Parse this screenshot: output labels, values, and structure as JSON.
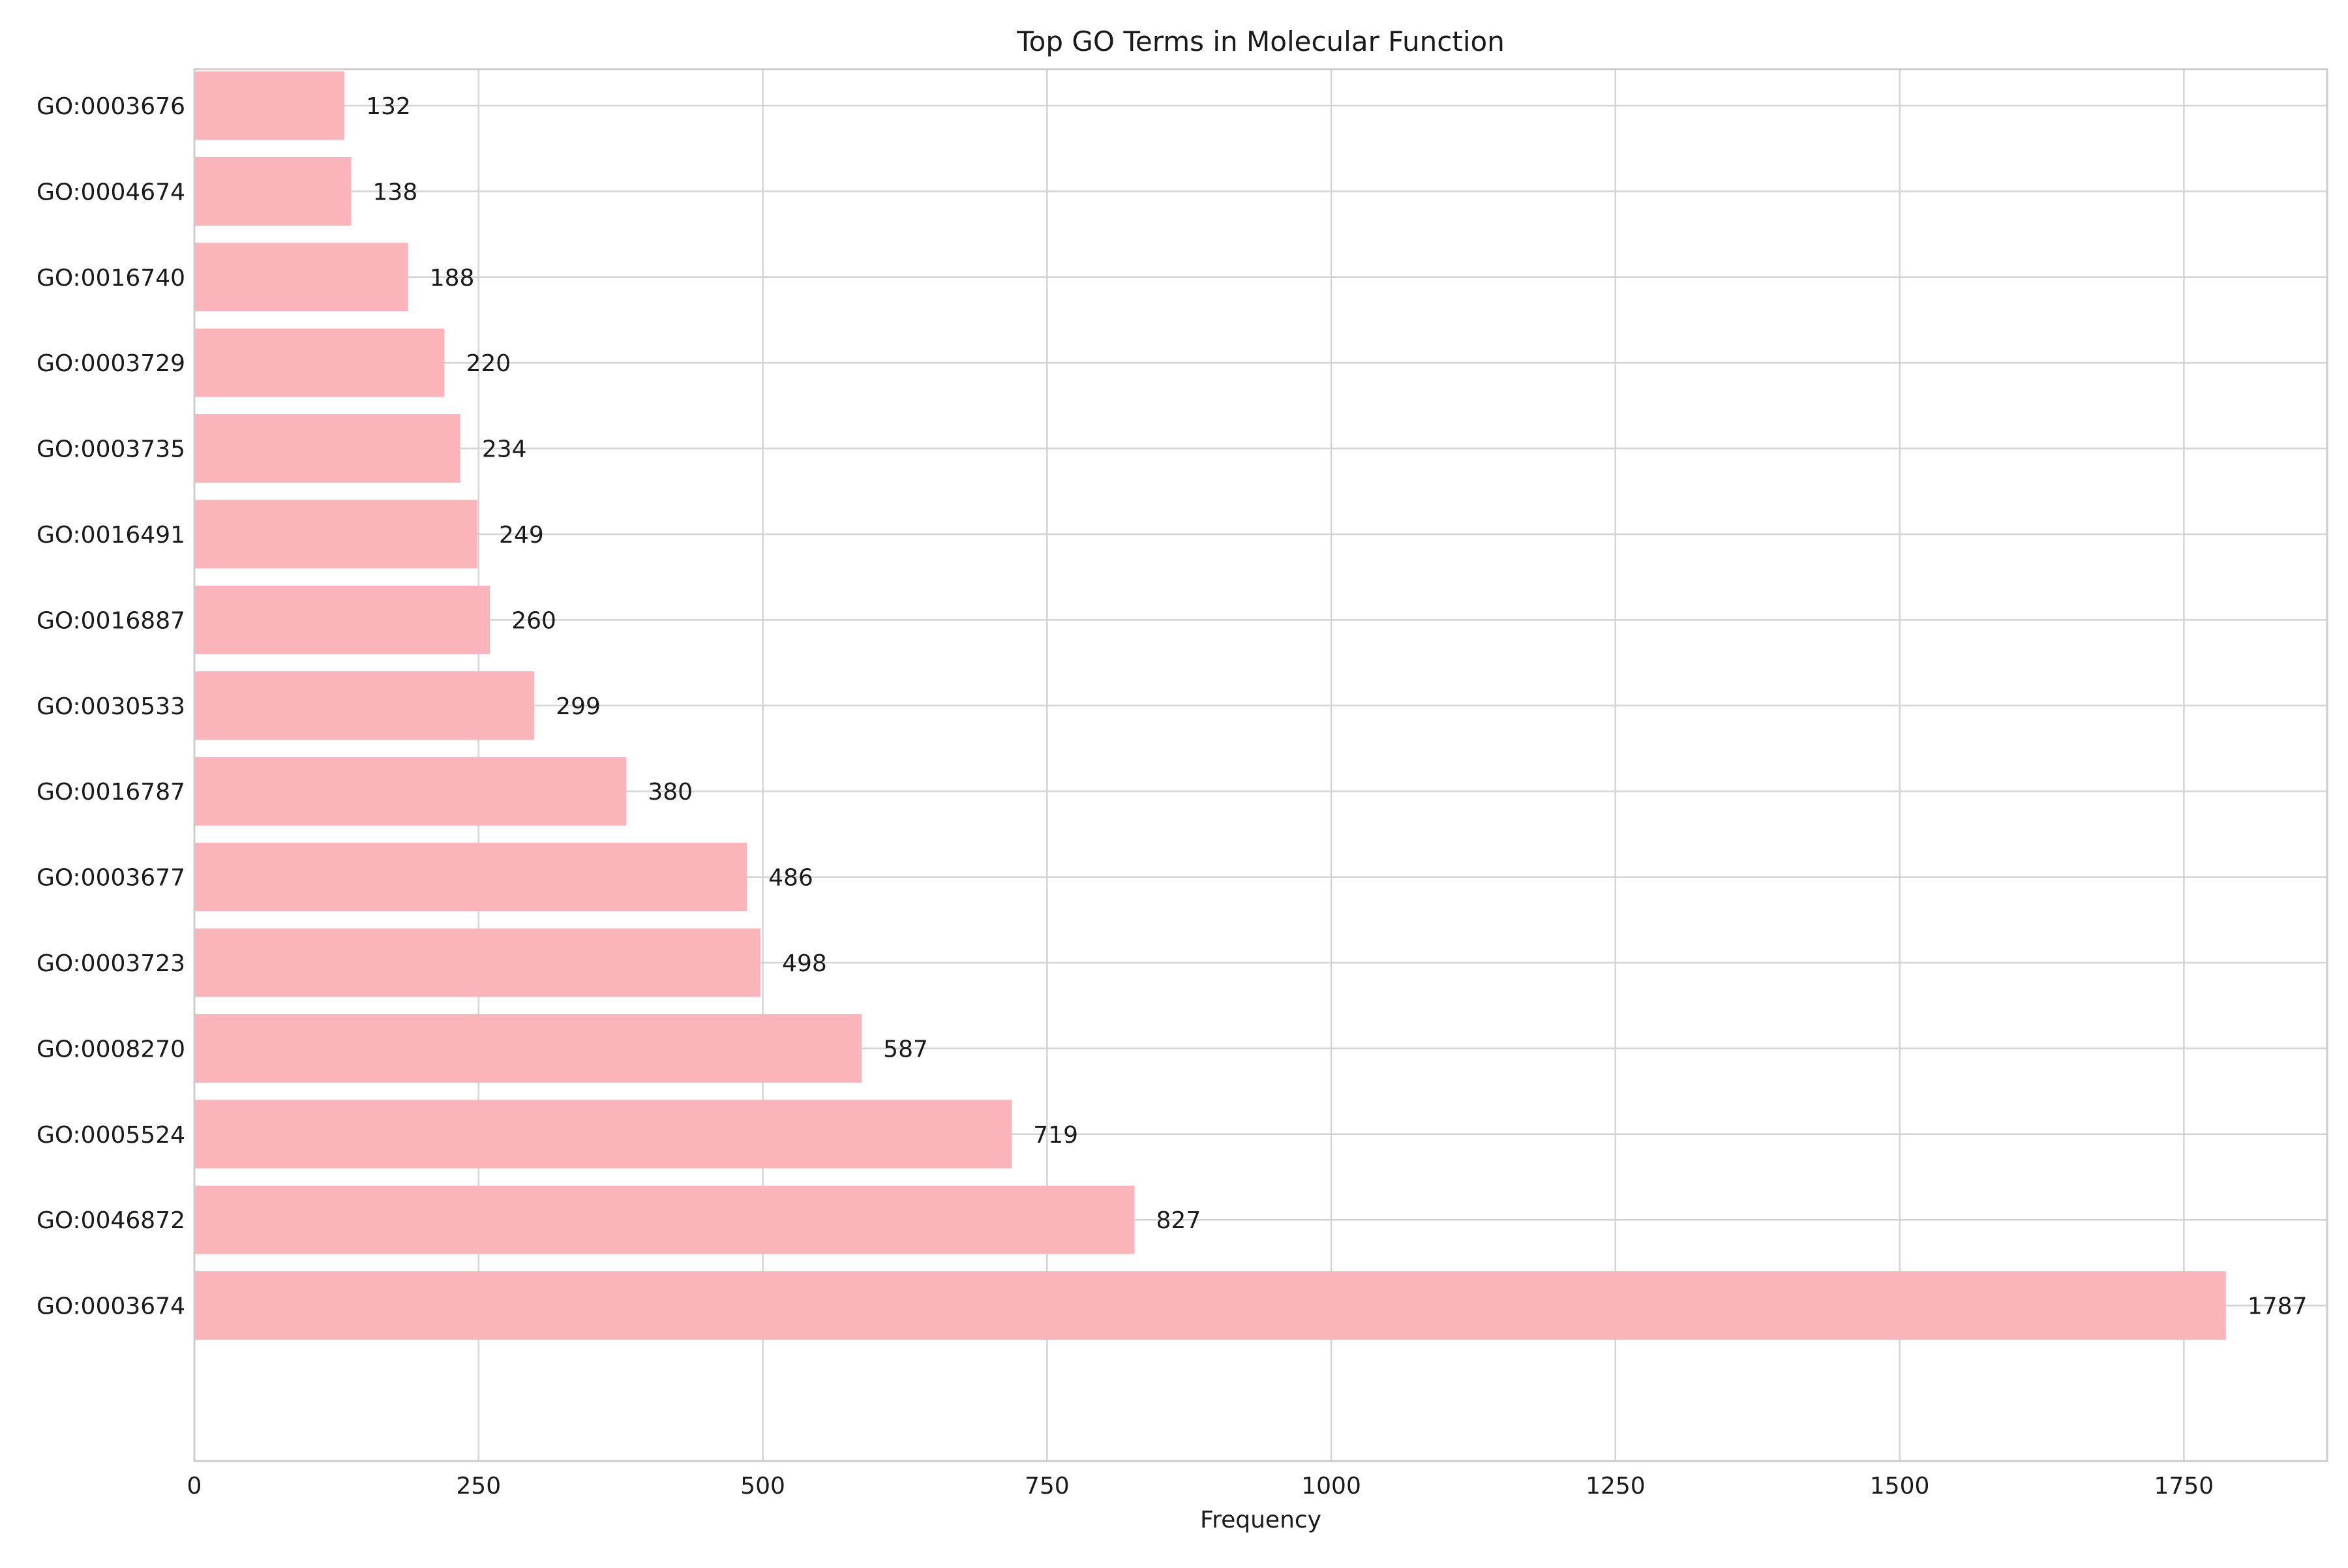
{
  "chart_data": {
    "type": "bar",
    "orientation": "horizontal",
    "title": "Top GO Terms in Molecular Function",
    "xlabel": "Frequency",
    "ylabel": "",
    "categories": [
      "GO:0003676",
      "GO:0004674",
      "GO:0016740",
      "GO:0003729",
      "GO:0003735",
      "GO:0016491",
      "GO:0016887",
      "GO:0030533",
      "GO:0016787",
      "GO:0003677",
      "GO:0003723",
      "GO:0008270",
      "GO:0005524",
      "GO:0046872",
      "GO:0003674"
    ],
    "values": [
      132,
      138,
      188,
      220,
      234,
      249,
      260,
      299,
      380,
      486,
      498,
      587,
      719,
      827,
      1787
    ],
    "data_labels": [
      "132",
      "138",
      "188",
      "220",
      "234",
      "249",
      "260",
      "299",
      "380",
      "486",
      "498",
      "587",
      "719",
      "827",
      "1787"
    ],
    "xlim": [
      0,
      1876
    ],
    "xticks": [
      0,
      250,
      500,
      750,
      1000,
      1250,
      1500,
      1750
    ],
    "xtick_labels": [
      "0",
      "250",
      "500",
      "750",
      "1000",
      "1250",
      "1500",
      "1750"
    ],
    "grid": true,
    "legend": "none",
    "colors": {
      "bar": "#fbb4b9",
      "grid": "#d4d4d4",
      "frame": "#cccccc",
      "text": "#1a1a1a"
    }
  }
}
